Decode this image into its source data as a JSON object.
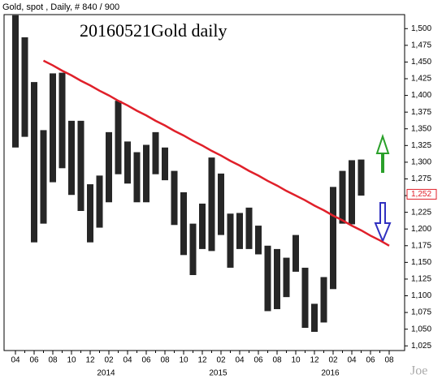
{
  "chart_data": {
    "type": "range",
    "header": "Gold, spot , Daily, # 840 / 900",
    "title": "20160521Gold daily",
    "watermark": "Joe",
    "color": "#000000",
    "categories": [
      "04",
      null,
      "06",
      null,
      "08",
      null,
      "10",
      null,
      "12",
      null,
      "02",
      null,
      "04",
      null,
      "06",
      null,
      "08",
      null,
      "10",
      null,
      "12",
      null,
      "02",
      null,
      "04",
      null,
      "06",
      null,
      "08",
      null,
      "10",
      null,
      "12",
      null,
      "02",
      null,
      "04",
      null,
      "06",
      null,
      "08"
    ],
    "years": [
      null,
      null,
      null,
      null,
      null,
      null,
      null,
      null,
      null,
      "2014",
      null,
      null,
      null,
      null,
      null,
      null,
      null,
      null,
      null,
      null,
      null,
      "2015",
      null,
      null,
      null,
      null,
      null,
      null,
      null,
      null,
      null,
      null,
      null,
      "2016",
      null,
      null,
      null,
      null,
      null,
      null,
      null
    ],
    "highs": [
      1520,
      1487,
      1420,
      1348,
      1433,
      1434,
      1362,
      1362,
      1267,
      1280,
      1345,
      1392,
      1331,
      1315,
      1326,
      1345,
      1322,
      1287,
      1255,
      1208,
      1238,
      1307,
      1283,
      1223,
      1224,
      1232,
      1205,
      1175,
      1170,
      1157,
      1191,
      1142,
      1088,
      1128,
      1263,
      1287,
      1303,
      1304,
      null,
      null,
      null
    ],
    "lows": [
      1322,
      1338,
      1180,
      1208,
      1270,
      1291,
      1251,
      1227,
      1180,
      1202,
      1240,
      1282,
      1268,
      1240,
      1240,
      1282,
      1273,
      1206,
      1161,
      1131,
      1170,
      1167,
      1191,
      1142,
      1170,
      1170,
      1162,
      1077,
      1080,
      1098,
      1136,
      1052,
      1046,
      1060,
      1110,
      1208,
      1207,
      1250,
      null,
      null,
      null
    ],
    "trendline": {
      "color": "#e0202a",
      "values": [
        null,
        null,
        null,
        1452,
        1445,
        1437,
        1430,
        1422,
        1415,
        1407,
        1400,
        1392,
        1385,
        1377,
        1370,
        1362,
        1355,
        1347,
        1340,
        1332,
        1325,
        1317,
        1310,
        1302,
        1295,
        1287,
        1280,
        1272,
        1265,
        1257,
        1250,
        1243,
        1235,
        1228,
        1220,
        1213,
        1205,
        1198,
        1190,
        1183,
        1175
      ]
    },
    "last_price": {
      "value": 1252,
      "label": "1,252",
      "color": "#e0202a"
    },
    "ylim": [
      1018,
      1521
    ],
    "yticks": [
      {
        "value": 1025,
        "label": "1,025"
      },
      {
        "value": 1050,
        "label": "1,050"
      },
      {
        "value": 1075,
        "label": "1,075"
      },
      {
        "value": 1100,
        "label": "1,100"
      },
      {
        "value": 1125,
        "label": "1,125"
      },
      {
        "value": 1150,
        "label": "1,150"
      },
      {
        "value": 1175,
        "label": "1,175"
      },
      {
        "value": 1200,
        "label": "1,200"
      },
      {
        "value": 1225,
        "label": "1,225"
      },
      {
        "value": 1250,
        "label": "1,250"
      },
      {
        "value": 1275,
        "label": "1,275"
      },
      {
        "value": 1300,
        "label": "1,300"
      },
      {
        "value": 1325,
        "label": "1,325"
      },
      {
        "value": 1350,
        "label": "1,350"
      },
      {
        "value": 1375,
        "label": "1,375"
      },
      {
        "value": 1400,
        "label": "1,400"
      },
      {
        "value": 1425,
        "label": "1,425"
      },
      {
        "value": 1450,
        "label": "1,450"
      },
      {
        "value": 1475,
        "label": "1,475"
      },
      {
        "value": 1500,
        "label": "1,500"
      }
    ]
  }
}
